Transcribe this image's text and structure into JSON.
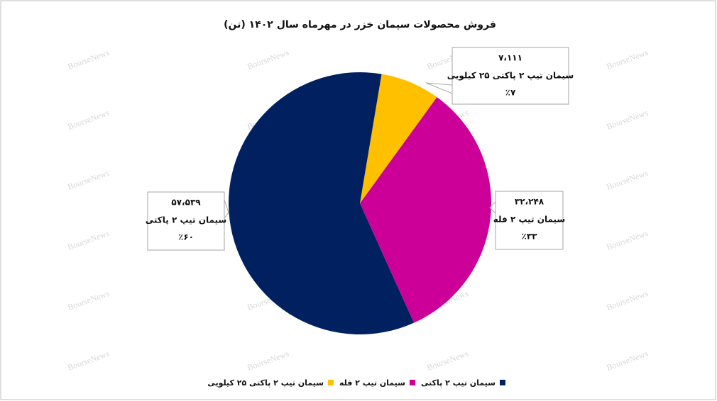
{
  "chart_data": {
    "type": "pie",
    "title": "فروش محصولات سیمان خزر در مهرماه سال ۱۴۰۲ (تن)",
    "categories": [
      "سیمان تیپ ۲ پاکتی ۲۵ کیلویی",
      "سیمان تیپ ۲ فله",
      "سیمان تیپ ۲ پاکتی"
    ],
    "values": [
      7111,
      32248,
      57539
    ],
    "value_labels": [
      "۷،۱۱۱",
      "۳۲،۲۴۸",
      "۵۷،۵۳۹"
    ],
    "percent_labels": [
      "٪۷",
      "٪۳۳",
      "٪۶۰"
    ],
    "colors": [
      "#ffc000",
      "#cc0099",
      "#002060"
    ],
    "legend": "bottom",
    "watermark": "BourseNews"
  }
}
